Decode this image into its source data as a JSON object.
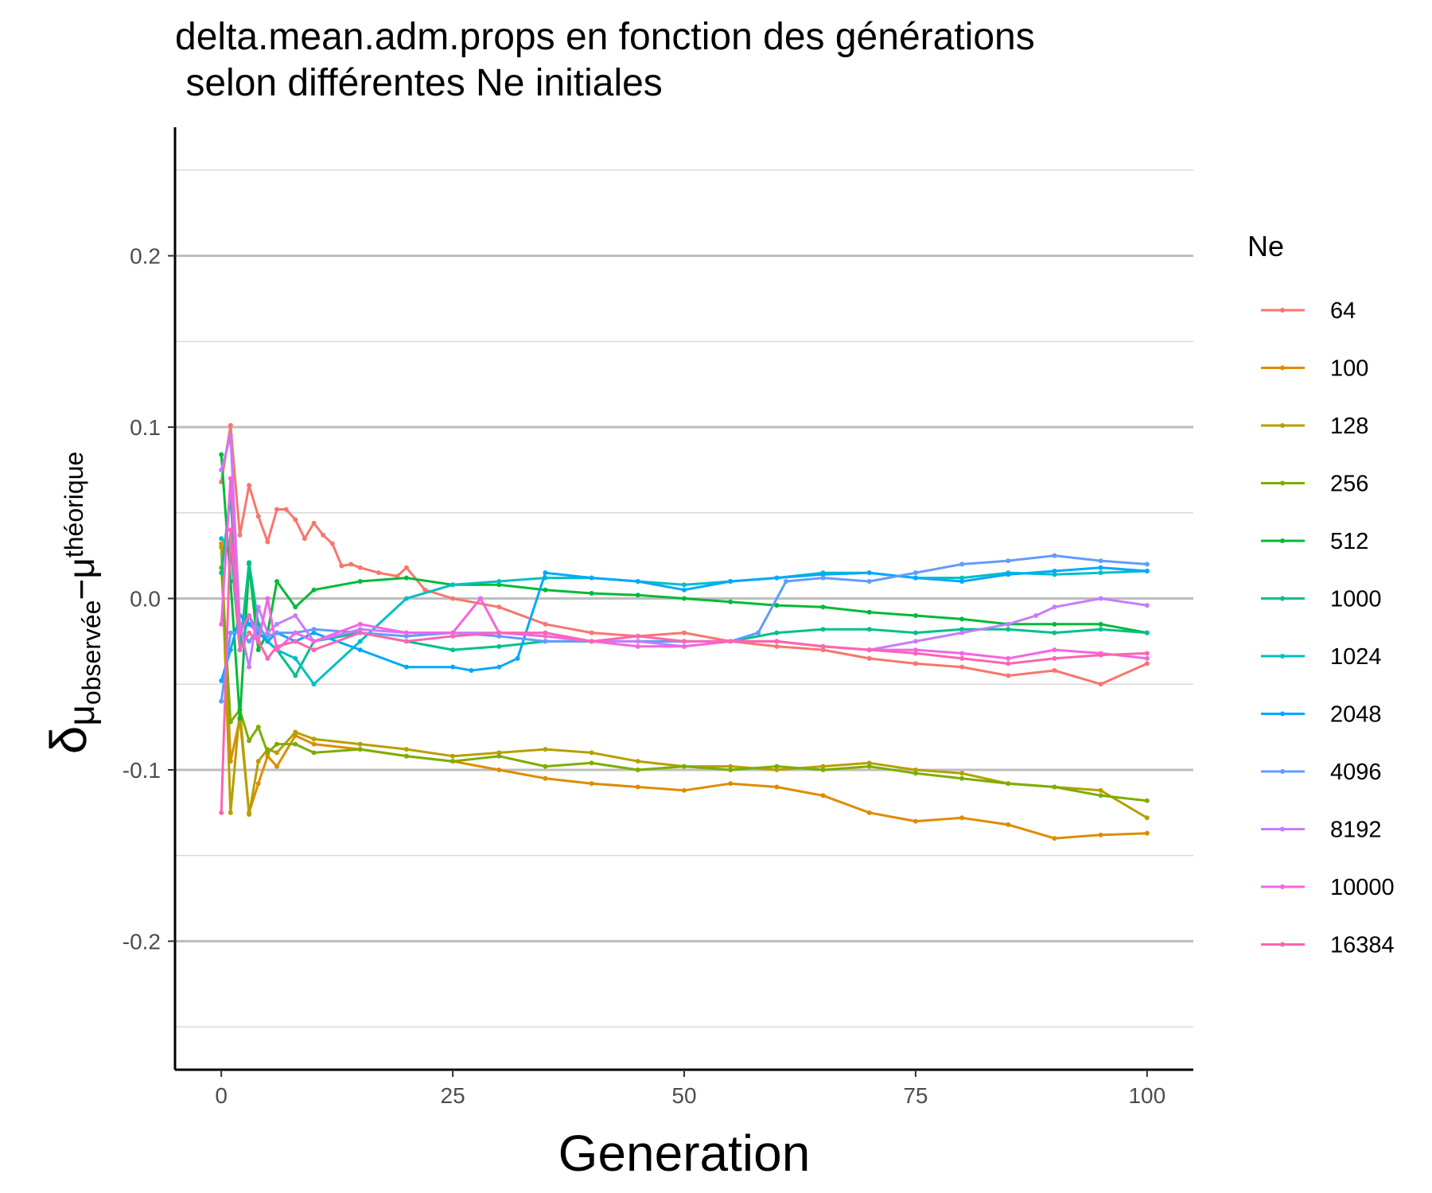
{
  "chart_data": {
    "type": "line",
    "title_line1": "delta.mean.adm.props en fonction des générations",
    "title_line2": " selon différentes Ne initiales",
    "xlabel": "Generation",
    "ylabel": {
      "delta": "δ",
      "mu1": "μ",
      "sub1": "observée",
      "minus": "−",
      "mu2": "μ",
      "sub2": "théorique"
    },
    "xlim": [
      -5,
      105
    ],
    "ylim": [
      -0.275,
      0.275
    ],
    "x_ticks": [
      0,
      25,
      50,
      75,
      100
    ],
    "x_tick_labels": [
      "0",
      "25",
      "50",
      "75",
      "100"
    ],
    "y_ticks": [
      -0.2,
      -0.1,
      0.0,
      0.1,
      0.2
    ],
    "y_tick_labels": [
      "-0.2",
      "-0.1",
      "0.0",
      "0.1",
      "0.2"
    ],
    "y_minor_ticks": [
      -0.25,
      -0.15,
      -0.05,
      0.05,
      0.15,
      0.25
    ],
    "grid": "horizontal",
    "legend_title": "Ne",
    "legend_position": "right",
    "series": [
      {
        "name": "64",
        "color": "#F8766D",
        "x": [
          0,
          1,
          2,
          3,
          4,
          5,
          6,
          7,
          8,
          9,
          10,
          11,
          12,
          13,
          14,
          15,
          17,
          19,
          20,
          22,
          25,
          30,
          35,
          40,
          45,
          50,
          55,
          60,
          65,
          70,
          75,
          80,
          85,
          90,
          95,
          100
        ],
        "y": [
          0.068,
          0.101,
          0.037,
          0.066,
          0.048,
          0.033,
          0.052,
          0.052,
          0.046,
          0.035,
          0.044,
          0.037,
          0.032,
          0.019,
          0.02,
          0.018,
          0.015,
          0.013,
          0.018,
          0.005,
          0.0,
          -0.005,
          -0.015,
          -0.02,
          -0.022,
          -0.02,
          -0.025,
          -0.028,
          -0.03,
          -0.035,
          -0.038,
          -0.04,
          -0.045,
          -0.042,
          -0.05,
          -0.038
        ]
      },
      {
        "name": "100",
        "color": "#DE8C00",
        "x": [
          0,
          1,
          2,
          3,
          4,
          5,
          6,
          8,
          10,
          15,
          20,
          25,
          30,
          35,
          40,
          45,
          50,
          55,
          60,
          65,
          70,
          75,
          80,
          85,
          90,
          95,
          100
        ],
        "y": [
          0.032,
          -0.095,
          -0.07,
          -0.125,
          -0.108,
          -0.092,
          -0.098,
          -0.08,
          -0.085,
          -0.088,
          -0.092,
          -0.095,
          -0.1,
          -0.105,
          -0.108,
          -0.11,
          -0.112,
          -0.108,
          -0.11,
          -0.115,
          -0.125,
          -0.13,
          -0.128,
          -0.132,
          -0.14,
          -0.138,
          -0.137
        ]
      },
      {
        "name": "128",
        "color": "#B79F00",
        "x": [
          0,
          1,
          2,
          3,
          4,
          5,
          6,
          8,
          10,
          15,
          20,
          25,
          30,
          35,
          40,
          45,
          50,
          55,
          60,
          65,
          70,
          75,
          80,
          85,
          90,
          95,
          100
        ],
        "y": [
          0.03,
          -0.125,
          -0.065,
          -0.126,
          -0.095,
          -0.088,
          -0.09,
          -0.078,
          -0.082,
          -0.085,
          -0.088,
          -0.092,
          -0.09,
          -0.088,
          -0.09,
          -0.095,
          -0.098,
          -0.098,
          -0.1,
          -0.098,
          -0.096,
          -0.1,
          -0.102,
          -0.108,
          -0.11,
          -0.112,
          -0.128
        ]
      },
      {
        "name": "256",
        "color": "#7CAE00",
        "x": [
          0,
          1,
          2,
          3,
          4,
          5,
          6,
          8,
          10,
          15,
          20,
          25,
          30,
          35,
          40,
          45,
          50,
          55,
          60,
          65,
          70,
          75,
          80,
          85,
          90,
          95,
          100
        ],
        "y": [
          0.018,
          -0.072,
          -0.065,
          -0.083,
          -0.075,
          -0.09,
          -0.085,
          -0.085,
          -0.09,
          -0.088,
          -0.092,
          -0.095,
          -0.092,
          -0.098,
          -0.096,
          -0.1,
          -0.098,
          -0.1,
          -0.098,
          -0.1,
          -0.098,
          -0.102,
          -0.105,
          -0.108,
          -0.11,
          -0.115,
          -0.118
        ]
      },
      {
        "name": "512",
        "color": "#00BA38",
        "x": [
          0,
          1,
          2,
          3,
          4,
          5,
          6,
          8,
          10,
          15,
          20,
          25,
          30,
          35,
          40,
          45,
          50,
          55,
          60,
          65,
          70,
          75,
          80,
          85,
          90,
          95,
          100
        ],
        "y": [
          0.084,
          0.01,
          -0.07,
          0.02,
          -0.03,
          -0.02,
          0.01,
          -0.005,
          0.005,
          0.01,
          0.012,
          0.008,
          0.008,
          0.005,
          0.003,
          0.002,
          0.0,
          -0.002,
          -0.004,
          -0.005,
          -0.008,
          -0.01,
          -0.012,
          -0.015,
          -0.015,
          -0.015,
          -0.02
        ]
      },
      {
        "name": "1000",
        "color": "#00C08B",
        "x": [
          0,
          1,
          2,
          3,
          4,
          5,
          6,
          8,
          10,
          15,
          20,
          25,
          30,
          35,
          40,
          45,
          50,
          55,
          60,
          65,
          70,
          75,
          80,
          85,
          90,
          95,
          100
        ],
        "y": [
          0.015,
          0.06,
          -0.03,
          0.021,
          -0.015,
          -0.025,
          -0.03,
          -0.045,
          -0.025,
          -0.02,
          -0.025,
          -0.03,
          -0.028,
          -0.025,
          -0.025,
          -0.025,
          -0.025,
          -0.025,
          -0.02,
          -0.018,
          -0.018,
          -0.02,
          -0.018,
          -0.018,
          -0.02,
          -0.018,
          -0.02
        ]
      },
      {
        "name": "1024",
        "color": "#00BFC4",
        "x": [
          0,
          1,
          2,
          3,
          4,
          5,
          6,
          8,
          10,
          15,
          20,
          25,
          30,
          35,
          40,
          45,
          50,
          55,
          60,
          65,
          70,
          75,
          80,
          85,
          90,
          95,
          100
        ],
        "y": [
          0.035,
          0.03,
          -0.03,
          -0.01,
          -0.02,
          -0.025,
          -0.03,
          -0.035,
          -0.05,
          -0.025,
          0.0,
          0.008,
          0.01,
          0.012,
          0.012,
          0.01,
          0.008,
          0.01,
          0.012,
          0.015,
          0.015,
          0.012,
          0.012,
          0.015,
          0.014,
          0.015,
          0.016
        ]
      },
      {
        "name": "2048",
        "color": "#00A9FF",
        "x": [
          0,
          1,
          2,
          3,
          4,
          5,
          6,
          8,
          10,
          15,
          20,
          25,
          27,
          30,
          32,
          35,
          40,
          45,
          50,
          55,
          60,
          65,
          70,
          75,
          80,
          85,
          90,
          95,
          100
        ],
        "y": [
          -0.048,
          -0.03,
          -0.01,
          -0.015,
          -0.02,
          -0.025,
          -0.02,
          -0.025,
          -0.02,
          -0.03,
          -0.04,
          -0.04,
          -0.042,
          -0.04,
          -0.035,
          0.015,
          0.012,
          0.01,
          0.005,
          0.01,
          0.012,
          0.014,
          0.015,
          0.012,
          0.01,
          0.014,
          0.016,
          0.018,
          0.016
        ]
      },
      {
        "name": "4096",
        "color": "#619CFF",
        "x": [
          0,
          1,
          2,
          3,
          4,
          5,
          6,
          8,
          10,
          15,
          20,
          25,
          30,
          35,
          40,
          45,
          50,
          55,
          58,
          61,
          65,
          70,
          75,
          80,
          85,
          90,
          95,
          100
        ],
        "y": [
          -0.06,
          -0.02,
          -0.02,
          -0.025,
          -0.018,
          -0.022,
          -0.02,
          -0.02,
          -0.018,
          -0.02,
          -0.022,
          -0.02,
          -0.022,
          -0.025,
          -0.025,
          -0.025,
          -0.025,
          -0.025,
          -0.02,
          0.01,
          0.012,
          0.01,
          0.015,
          0.02,
          0.022,
          0.025,
          0.022,
          0.02
        ]
      },
      {
        "name": "8192",
        "color": "#C77CFF",
        "x": [
          0,
          1,
          2,
          3,
          4,
          5,
          6,
          8,
          10,
          15,
          20,
          25,
          30,
          35,
          40,
          45,
          50,
          55,
          60,
          65,
          70,
          75,
          80,
          85,
          88,
          90,
          95,
          100
        ],
        "y": [
          0.075,
          0.095,
          -0.015,
          -0.04,
          -0.005,
          -0.02,
          -0.015,
          -0.01,
          -0.025,
          -0.018,
          -0.02,
          -0.02,
          -0.02,
          -0.022,
          -0.025,
          -0.025,
          -0.028,
          -0.025,
          -0.025,
          -0.028,
          -0.03,
          -0.025,
          -0.02,
          -0.015,
          -0.01,
          -0.005,
          0.0,
          -0.004
        ]
      },
      {
        "name": "10000",
        "color": "#F564E3",
        "x": [
          0,
          1,
          2,
          3,
          4,
          5,
          6,
          8,
          10,
          15,
          20,
          25,
          28,
          30,
          35,
          40,
          45,
          50,
          55,
          60,
          65,
          70,
          75,
          80,
          85,
          90,
          95,
          100
        ],
        "y": [
          -0.015,
          0.07,
          -0.02,
          -0.01,
          -0.025,
          0.0,
          -0.03,
          -0.02,
          -0.025,
          -0.015,
          -0.02,
          -0.02,
          0.0,
          -0.02,
          -0.022,
          -0.025,
          -0.028,
          -0.028,
          -0.025,
          -0.025,
          -0.028,
          -0.03,
          -0.03,
          -0.032,
          -0.035,
          -0.03,
          -0.032,
          -0.035
        ]
      },
      {
        "name": "16384",
        "color": "#FF64B0",
        "x": [
          0,
          1,
          2,
          3,
          4,
          5,
          6,
          8,
          10,
          15,
          20,
          25,
          30,
          35,
          40,
          45,
          50,
          55,
          60,
          65,
          70,
          75,
          80,
          85,
          90,
          95,
          100
        ],
        "y": [
          -0.125,
          0.04,
          -0.03,
          -0.02,
          -0.025,
          -0.035,
          -0.028,
          -0.025,
          -0.03,
          -0.02,
          -0.025,
          -0.022,
          -0.02,
          -0.02,
          -0.025,
          -0.022,
          -0.025,
          -0.025,
          -0.025,
          -0.028,
          -0.03,
          -0.032,
          -0.035,
          -0.038,
          -0.035,
          -0.033,
          -0.032
        ]
      }
    ]
  }
}
